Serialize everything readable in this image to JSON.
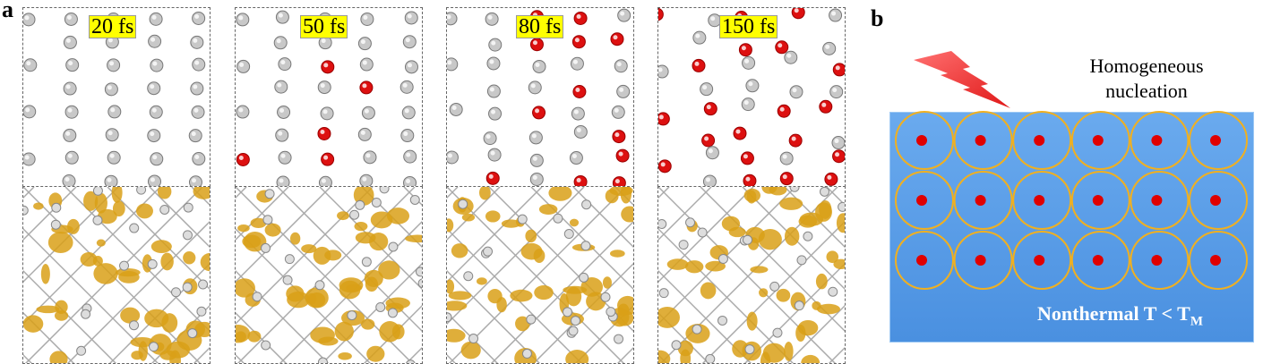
{
  "panel_a": {
    "label": "a",
    "frames": [
      {
        "time": "20 fs"
      },
      {
        "time": "50 fs"
      },
      {
        "time": "80 fs"
      },
      {
        "time": "150 fs"
      }
    ]
  },
  "panel_b": {
    "label": "b",
    "title_line1": "Homogeneous",
    "title_line2": "nucleation",
    "condition": "Nonthermal T < T",
    "condition_sub": "M",
    "grid": {
      "rows": 3,
      "cols": 6
    },
    "colors": {
      "box": "#4a90e0",
      "ring": "#f0b020",
      "nucleus": "#e00000",
      "bolt": "#f03030"
    }
  }
}
